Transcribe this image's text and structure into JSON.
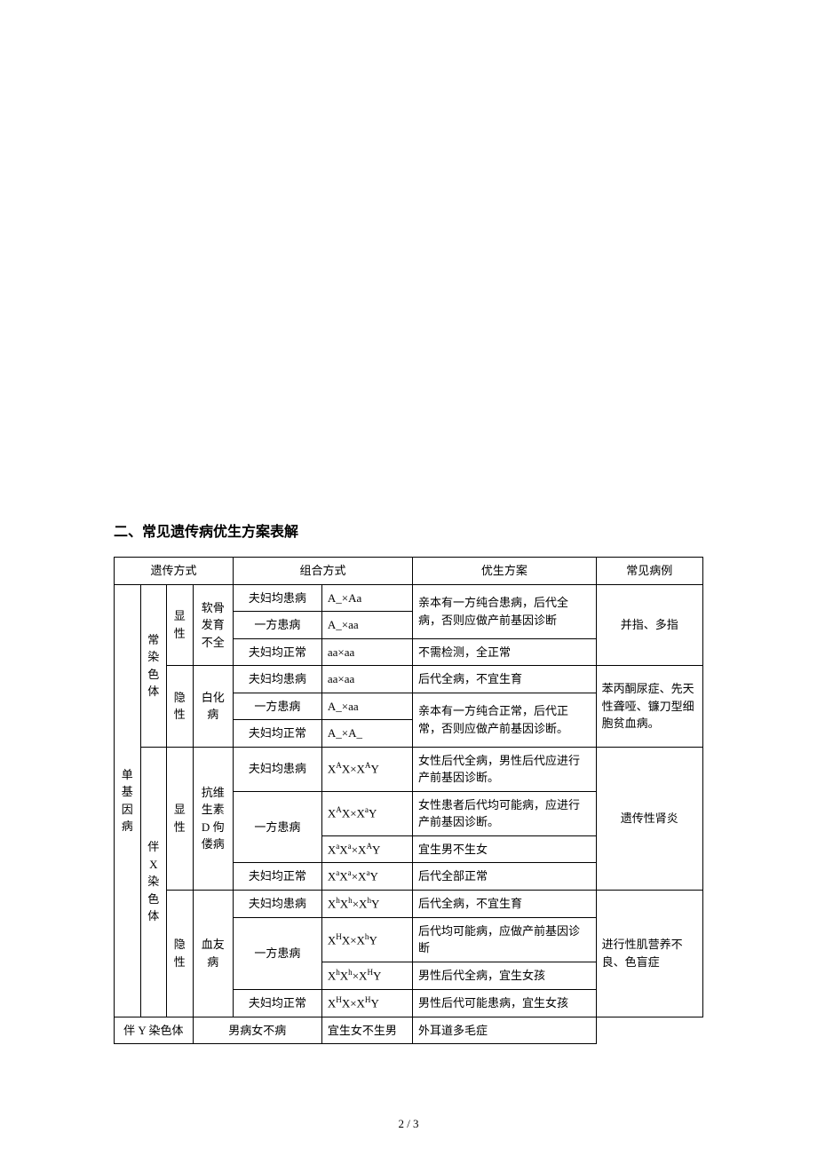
{
  "title": "二、常见遗传病优生方案表解",
  "footer": "2 / 3",
  "header": {
    "h1": "遗传方式",
    "h2": "组合方式",
    "h3": "优生方案",
    "h4": "常见病例"
  },
  "labels": {
    "single_gene": "单基因病",
    "autosomal": "常染色体",
    "xlinked": "伴 X 染色体",
    "ylinked": "伴 Y 染色体",
    "dominant": "显性",
    "recessive": "隐性"
  },
  "diseases": {
    "softbone": "软骨发育不全",
    "albinism": "白化病",
    "vitd": "抗维生素 D 佝偻病",
    "hemophilia": "血友病"
  },
  "combo": {
    "both_sick": "夫妇均患病",
    "one_sick": "一方患病",
    "both_normal": "夫妇均正常",
    "male_sick_female_not": "男病女不病"
  },
  "geno": {
    "g1": "A_×Aa",
    "g2": "A_×aa",
    "g3": "aa×aa",
    "g4": "aa×aa",
    "g5": "A_×aa",
    "g6": "A_×A_",
    "g7_label": "X",
    "g8_label": "X",
    "g9_label": "X",
    "g10_label": "X",
    "g11_label": "X",
    "g12_label": "X",
    "g13_label": "X",
    "g14_label": "X"
  },
  "plan": {
    "p1": "亲本有一方纯合患病，后代全病，否则应做产前基因诊断",
    "p2": "不需检测，全正常",
    "p3": "后代全病，不宜生育",
    "p4": "亲本有一方纯合正常，后代正常，否则应做产前基因诊断。",
    "p5": "女性后代全病，男性后代应进行产前基因诊断。",
    "p6": "女性患者后代均可能病，应进行产前基因诊断。",
    "p7": "宜生男不生女",
    "p8": "后代全部正常",
    "p9": "后代全病，不宜生育",
    "p10": "后代均可能病，应做产前基因诊断",
    "p11": "男性后代全病，宜生女孩",
    "p12": "男性后代可能患病，宜生女孩",
    "p13": "宜生女不生男"
  },
  "examples": {
    "e1": "并指、多指",
    "e2": "苯丙酮尿症、先天性聋哑、镰刀型细胞贫血病。",
    "e3": "遗传性肾炎",
    "e4": "进行性肌营养不良、色盲症",
    "e5": "外耳道多毛症"
  }
}
